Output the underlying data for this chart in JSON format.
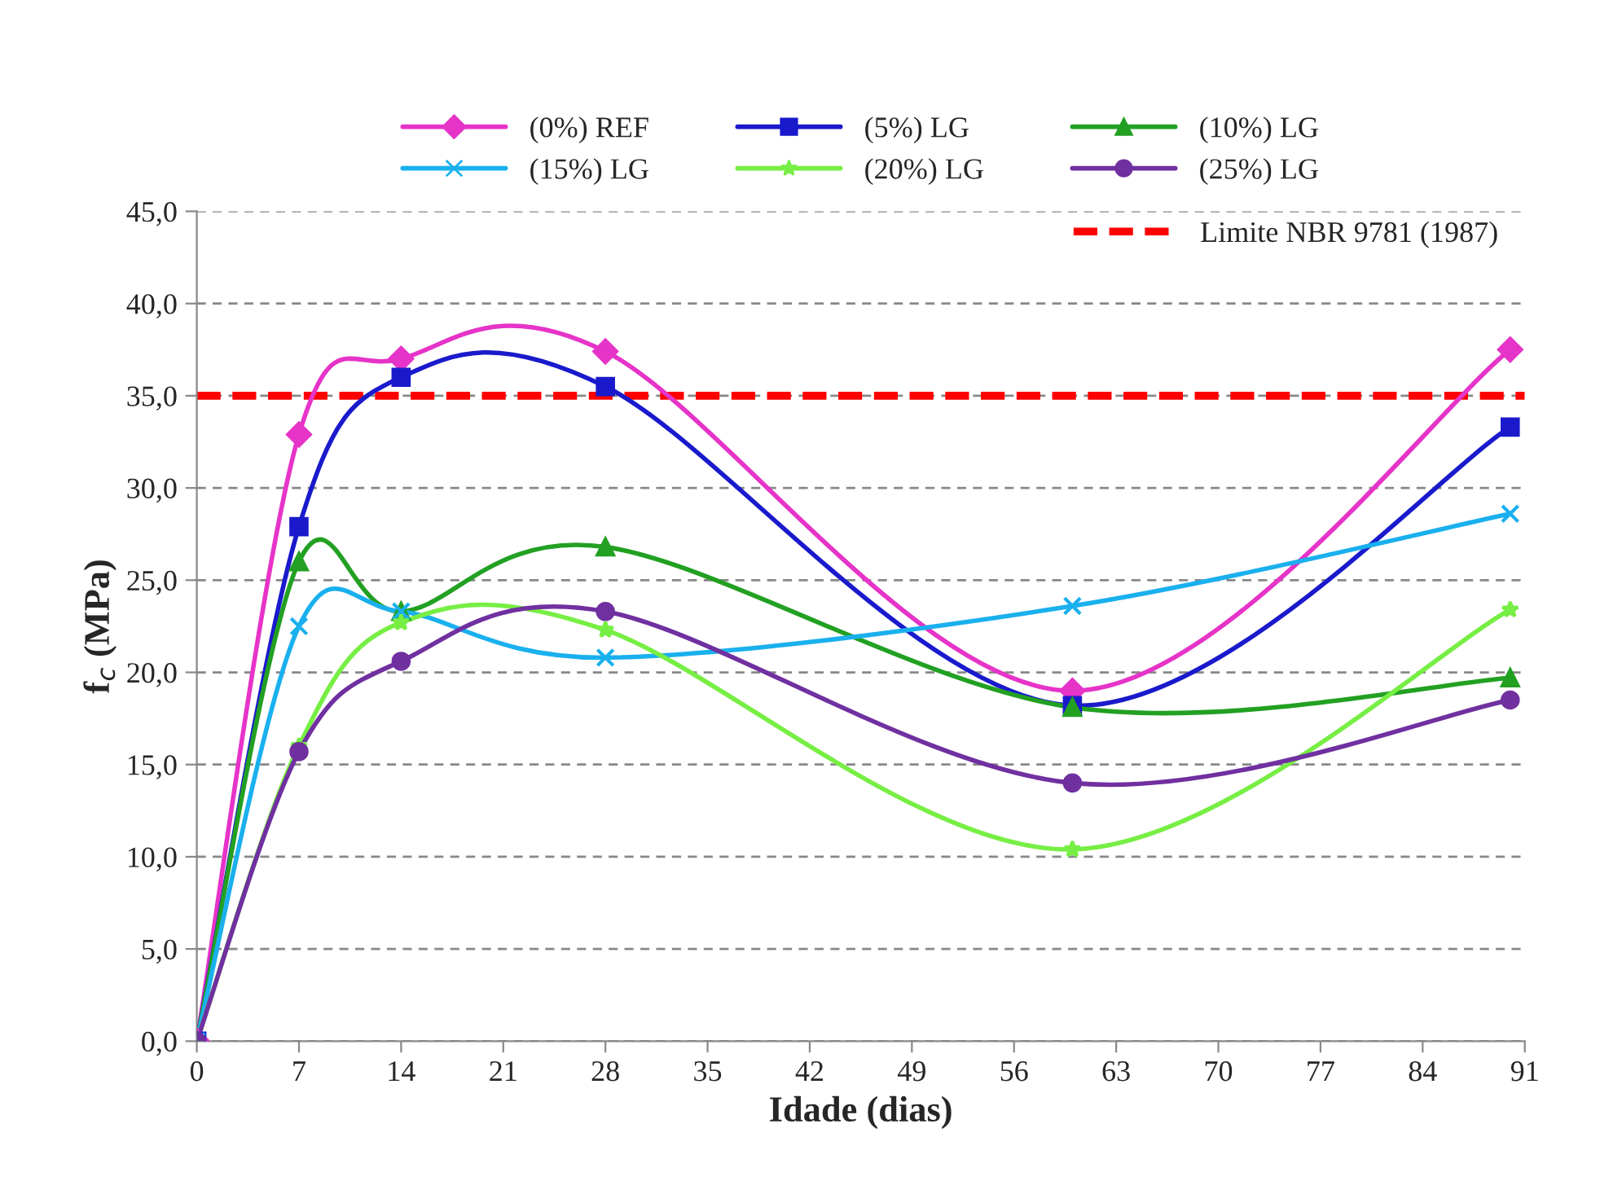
{
  "chart_data": {
    "type": "line",
    "xlabel": "Idade (dias)",
    "ylabel": "f$_{c}$ (MPa)",
    "x": [
      0,
      7,
      14,
      28,
      60,
      90
    ],
    "series": [
      {
        "name": "(0%) REF",
        "color": "#e633c8",
        "marker": "diamond",
        "values": [
          0,
          32.9,
          37.0,
          37.4,
          19.0,
          37.5
        ]
      },
      {
        "name": "(5%) LG",
        "color": "#1a1acc",
        "marker": "square",
        "values": [
          0,
          27.9,
          36.0,
          35.5,
          18.2,
          33.3
        ]
      },
      {
        "name": "(10%) LG",
        "color": "#22a022",
        "marker": "triangle",
        "values": [
          0,
          26.0,
          23.3,
          26.8,
          18.1,
          19.7
        ]
      },
      {
        "name": "(15%) LG",
        "color": "#1ab0ee",
        "marker": "cross",
        "values": [
          0,
          22.5,
          23.3,
          20.8,
          23.6,
          28.6
        ]
      },
      {
        "name": "(20%) LG",
        "color": "#77ee44",
        "marker": "star",
        "values": [
          0,
          16.0,
          22.7,
          22.3,
          10.4,
          23.4
        ]
      },
      {
        "name": "(25%) LG",
        "color": "#7030a0",
        "marker": "circle",
        "values": [
          0,
          15.7,
          20.6,
          23.3,
          14.0,
          18.5
        ]
      }
    ],
    "ref_lines": [
      {
        "axis": "y",
        "value": 35,
        "label": "Limite NBR 9781 (1987)",
        "color": "#ff0000",
        "line_style": "dashed"
      }
    ],
    "xlim": [
      0,
      91
    ],
    "xticks": [
      0,
      7,
      14,
      21,
      28,
      35,
      42,
      49,
      56,
      63,
      70,
      77,
      84,
      91
    ],
    "ylim": [
      0,
      45
    ],
    "yticks": [
      {
        "value": 0,
        "label": "0,0"
      },
      {
        "value": 5,
        "label": "5,0"
      },
      {
        "value": 10,
        "label": "10,0"
      },
      {
        "value": 15,
        "label": "15,0"
      },
      {
        "value": 20,
        "label": "20,0"
      },
      {
        "value": 25,
        "label": "25,0"
      },
      {
        "value": 30,
        "label": "30,0"
      },
      {
        "value": 35,
        "label": "35,0"
      },
      {
        "value": 40,
        "label": "40,0"
      },
      {
        "value": 45,
        "label": "45,0"
      }
    ],
    "grid": "y",
    "legend": "top",
    "line_style": "solid"
  }
}
